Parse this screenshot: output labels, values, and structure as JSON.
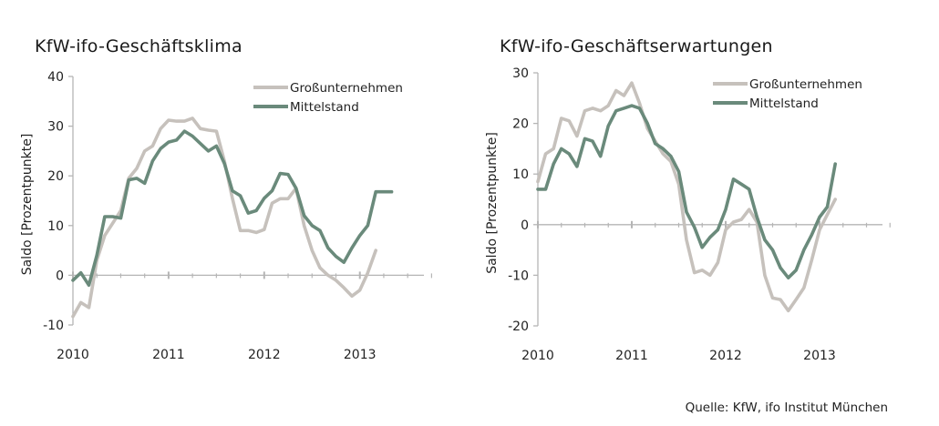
{
  "source": "Quelle: KfW, ifo Institut München",
  "colors": {
    "grossunternehmen": "#c6c1bc",
    "mittelstand": "#6a8a7b",
    "axis": "#b5b5b5"
  },
  "chart_data": [
    {
      "type": "line",
      "title": "KfW-ifo-Geschäftsklima",
      "ylabel": "Saldo [Prozentpunkte]",
      "xlabel": "",
      "ylim": [
        -10,
        40
      ],
      "yticks": [
        -10,
        0,
        10,
        20,
        30,
        40
      ],
      "xlim": [
        2010,
        2013.67
      ],
      "xticks": [
        2010,
        2011,
        2012,
        2013
      ],
      "xtick_labels": [
        "2010",
        "2011",
        "2012",
        "2013"
      ],
      "legend": "top-right",
      "grid": false,
      "series": [
        {
          "name": "Großunternehmen",
          "x": [
            2010.0,
            2010.083,
            2010.167,
            2010.25,
            2010.333,
            2010.417,
            2010.5,
            2010.583,
            2010.667,
            2010.75,
            2010.833,
            2010.917,
            2011.0,
            2011.083,
            2011.167,
            2011.25,
            2011.333,
            2011.417,
            2011.5,
            2011.583,
            2011.667,
            2011.75,
            2011.833,
            2011.917,
            2012.0,
            2012.083,
            2012.167,
            2012.25,
            2012.333,
            2012.417,
            2012.5,
            2012.583,
            2012.667,
            2012.75,
            2012.833,
            2012.917,
            2013.0,
            2013.083,
            2013.167
          ],
          "values": [
            -8.3,
            -5.5,
            -6.5,
            3.0,
            8.0,
            10.5,
            13.0,
            19.5,
            21.5,
            25.0,
            26.0,
            29.5,
            31.2,
            31.0,
            31.0,
            31.6,
            29.5,
            29.2,
            29.0,
            23.0,
            15.5,
            9.0,
            9.0,
            8.6,
            9.2,
            14.5,
            15.4,
            15.4,
            17.5,
            10.0,
            5.0,
            1.5,
            0.0,
            -1.0,
            -2.5,
            -4.2,
            -3.0,
            0.5,
            5.0
          ]
        },
        {
          "name": "Mittelstand",
          "x": [
            2010.0,
            2010.083,
            2010.167,
            2010.25,
            2010.333,
            2010.417,
            2010.5,
            2010.583,
            2010.667,
            2010.75,
            2010.833,
            2010.917,
            2011.0,
            2011.083,
            2011.167,
            2011.25,
            2011.333,
            2011.417,
            2011.5,
            2011.583,
            2011.667,
            2011.75,
            2011.833,
            2011.917,
            2012.0,
            2012.083,
            2012.167,
            2012.25,
            2012.333,
            2012.417,
            2012.5,
            2012.583,
            2012.667,
            2012.75,
            2012.833,
            2012.917,
            2013.0,
            2013.083,
            2013.167,
            2013.25,
            2013.333
          ],
          "values": [
            -1.0,
            0.5,
            -2.0,
            4.0,
            11.8,
            11.8,
            11.5,
            19.2,
            19.5,
            18.5,
            23.0,
            25.5,
            26.8,
            27.2,
            29.0,
            28.0,
            26.5,
            25.0,
            26.0,
            22.5,
            17.0,
            16.0,
            12.5,
            13.0,
            15.5,
            17.0,
            20.5,
            20.3,
            17.5,
            12.0,
            10.0,
            9.0,
            5.5,
            3.8,
            2.6,
            5.5,
            8.0,
            10.0,
            16.8,
            16.8,
            16.8
          ]
        }
      ]
    },
    {
      "type": "line",
      "title": "KfW-ifo-Geschäftserwartungen",
      "ylabel": "Saldo [Prozentpunkte]",
      "xlabel": "",
      "ylim": [
        -20,
        30
      ],
      "yticks": [
        -20,
        -10,
        0,
        10,
        20,
        30
      ],
      "xlim": [
        2010,
        2013.67
      ],
      "xticks": [
        2010,
        2011,
        2012,
        2013
      ],
      "xtick_labels": [
        "2010",
        "2011",
        "2012",
        "2013"
      ],
      "legend": "top-right",
      "grid": false,
      "series": [
        {
          "name": "Großunternehmen",
          "x": [
            2010.0,
            2010.083,
            2010.167,
            2010.25,
            2010.333,
            2010.417,
            2010.5,
            2010.583,
            2010.667,
            2010.75,
            2010.833,
            2010.917,
            2011.0,
            2011.083,
            2011.167,
            2011.25,
            2011.333,
            2011.417,
            2011.5,
            2011.583,
            2011.667,
            2011.75,
            2011.833,
            2011.917,
            2012.0,
            2012.083,
            2012.167,
            2012.25,
            2012.333,
            2012.417,
            2012.5,
            2012.583,
            2012.667,
            2012.75,
            2012.833,
            2012.917,
            2013.0,
            2013.083,
            2013.167
          ],
          "values": [
            8.5,
            14.0,
            15.0,
            21.0,
            20.5,
            17.5,
            22.5,
            23.0,
            22.5,
            23.5,
            26.5,
            25.5,
            28.0,
            24.0,
            19.0,
            16.5,
            14.0,
            12.5,
            8.0,
            -3.0,
            -9.5,
            -9.0,
            -10.0,
            -7.5,
            -1.0,
            0.5,
            1.0,
            3.0,
            0.5,
            -10.0,
            -14.5,
            -14.8,
            -17.0,
            -14.8,
            -12.5,
            -7.0,
            -1.0,
            2.0,
            5.0
          ]
        },
        {
          "name": "Mittelstand",
          "x": [
            2010.0,
            2010.083,
            2010.167,
            2010.25,
            2010.333,
            2010.417,
            2010.5,
            2010.583,
            2010.667,
            2010.75,
            2010.833,
            2010.917,
            2011.0,
            2011.083,
            2011.167,
            2011.25,
            2011.333,
            2011.417,
            2011.5,
            2011.583,
            2011.667,
            2011.75,
            2011.833,
            2011.917,
            2012.0,
            2012.083,
            2012.167,
            2012.25,
            2012.333,
            2012.417,
            2012.5,
            2012.583,
            2012.667,
            2012.75,
            2012.833,
            2012.917,
            2013.0,
            2013.083,
            2013.167
          ],
          "values": [
            7.0,
            7.0,
            12.0,
            15.0,
            14.0,
            11.5,
            17.0,
            16.5,
            13.5,
            19.5,
            22.5,
            23.0,
            23.5,
            23.0,
            20.0,
            16.0,
            15.0,
            13.5,
            10.5,
            2.5,
            -0.5,
            -4.5,
            -2.5,
            -1.0,
            3.0,
            9.0,
            8.0,
            7.0,
            1.5,
            -3.0,
            -5.0,
            -8.5,
            -10.5,
            -9.0,
            -5.0,
            -2.0,
            1.5,
            3.5,
            12.0
          ]
        }
      ]
    }
  ]
}
